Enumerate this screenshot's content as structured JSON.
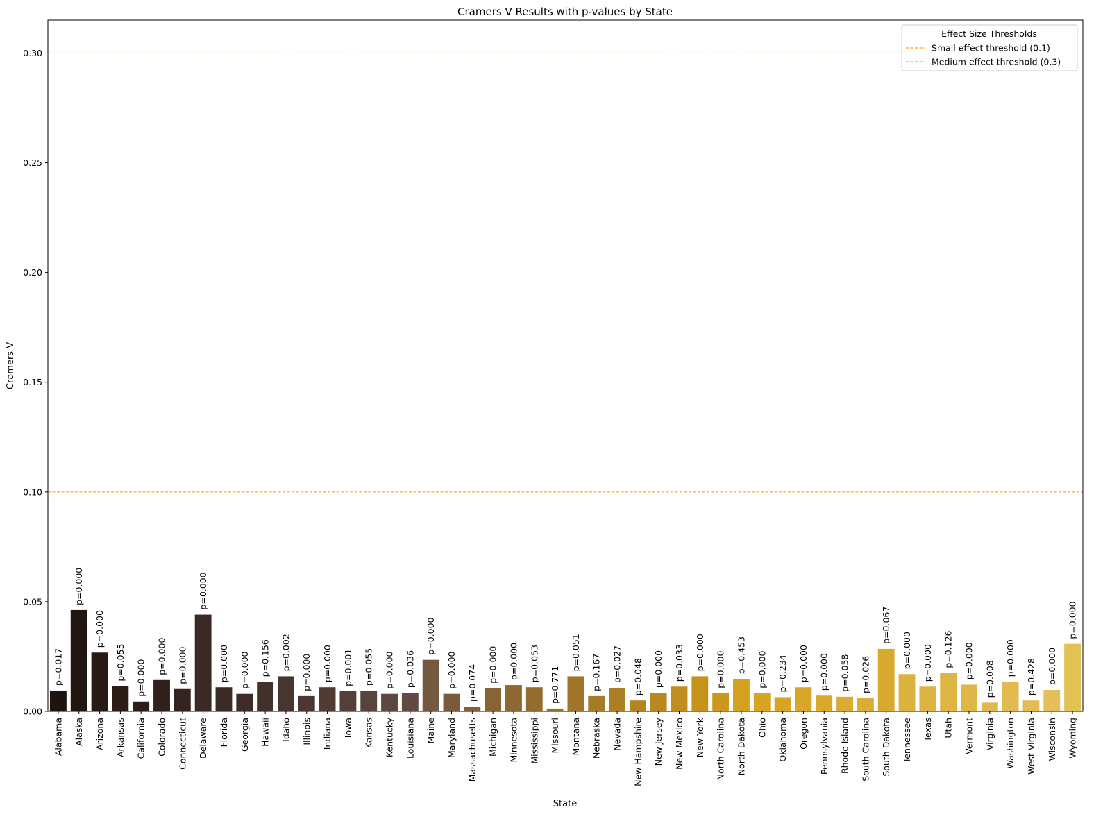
{
  "chart_data": {
    "type": "bar",
    "title": "Cramers V Results with p-values by State",
    "xlabel": "State",
    "ylabel": "Cramers V",
    "ylim": [
      0,
      0.315
    ],
    "yticks": [
      "0.00",
      "0.05",
      "0.10",
      "0.15",
      "0.20",
      "0.25",
      "0.30"
    ],
    "grid": false,
    "categories": [
      "Alabama",
      "Alaska",
      "Arizona",
      "Arkansas",
      "California",
      "Colorado",
      "Connecticut",
      "Delaware",
      "Florida",
      "Georgia",
      "Hawaii",
      "Idaho",
      "Illinois",
      "Indiana",
      "Iowa",
      "Kansas",
      "Kentucky",
      "Louisiana",
      "Maine",
      "Maryland",
      "Massachusetts",
      "Michigan",
      "Minnesota",
      "Mississippi",
      "Missouri",
      "Montana",
      "Nebraska",
      "Nevada",
      "New Hampshire",
      "New Jersey",
      "New Mexico",
      "New York",
      "North Carolina",
      "North Dakota",
      "Ohio",
      "Oklahoma",
      "Oregon",
      "Pennsylvania",
      "Rhode Island",
      "South Carolina",
      "South Dakota",
      "Tennessee",
      "Texas",
      "Utah",
      "Vermont",
      "Virginia",
      "Washington",
      "West Virginia",
      "Wisconsin",
      "Wyoming"
    ],
    "values": [
      0.0095,
      0.0462,
      0.0268,
      0.0115,
      0.0045,
      0.0143,
      0.0102,
      0.0441,
      0.011,
      0.008,
      0.0135,
      0.016,
      0.007,
      0.011,
      0.0092,
      0.0095,
      0.008,
      0.0085,
      0.0235,
      0.008,
      0.0022,
      0.0105,
      0.012,
      0.011,
      0.0013,
      0.016,
      0.007,
      0.0107,
      0.005,
      0.0085,
      0.0113,
      0.016,
      0.0083,
      0.0148,
      0.0083,
      0.0065,
      0.011,
      0.0072,
      0.0067,
      0.006,
      0.0285,
      0.017,
      0.0113,
      0.0175,
      0.0122,
      0.004,
      0.0135,
      0.005,
      0.0098,
      0.0308
    ],
    "p_labels": [
      "p=0.017",
      "p=0.000",
      "p=0.000",
      "p=0.055",
      "p=0.000",
      "p=0.000",
      "p=0.000",
      "p=0.000",
      "p=0.000",
      "p=0.000",
      "p=0.156",
      "p=0.002",
      "p=0.000",
      "p=0.000",
      "p=0.001",
      "p=0.055",
      "p=0.000",
      "p=0.036",
      "p=0.000",
      "p=0.000",
      "p=0.074",
      "p=0.000",
      "p=0.000",
      "p=0.053",
      "p=0.771",
      "p=0.051",
      "p=0.167",
      "p=0.027",
      "p=0.048",
      "p=0.000",
      "p=0.033",
      "p=0.000",
      "p=0.000",
      "p=0.453",
      "p=0.000",
      "p=0.234",
      "p=0.000",
      "p=0.000",
      "p=0.058",
      "p=0.026",
      "p=0.067",
      "p=0.000",
      "p=0.000",
      "p=0.126",
      "p=0.000",
      "p=0.008",
      "p=0.000",
      "p=0.428",
      "p=0.000",
      "p=0.000"
    ],
    "bar_colors": [
      "#1f1310",
      "#221611",
      "#271a15",
      "#2b1c17",
      "#2e1e19",
      "#311f1b",
      "#34231e",
      "#3a2924",
      "#3b2a25",
      "#3f2c28",
      "#42302b",
      "#47352f",
      "#4c3832",
      "#503c35",
      "#553f38",
      "#5a433b",
      "#5e473e",
      "#634a40",
      "#745840",
      "#7a5a3a",
      "#805e38",
      "#876335",
      "#8d6832",
      "#936c30",
      "#9a702d",
      "#a0752a",
      "#a67a27",
      "#ad7f25",
      "#b38422",
      "#b98920",
      "#bf8e1e",
      "#c5931c",
      "#cb981b",
      "#d4a020",
      "#d6a323",
      "#d7a526",
      "#d8a72a",
      "#d9a92e",
      "#daab32",
      "#dbad36",
      "#d8a82f",
      "#dcb13d",
      "#ddb341",
      "#deb545",
      "#dfb749",
      "#e0b94d",
      "#e1bb51",
      "#e2bd55",
      "#e3bf59",
      "#e3c254"
    ],
    "thresholds": [
      {
        "label": "Small effect threshold (0.1)",
        "value": 0.1,
        "color": "#ffa500"
      },
      {
        "label": "Medium effect threshold (0.3)",
        "value": 0.3,
        "color": "#ffa500"
      }
    ],
    "legend": {
      "title": "Effect Size Thresholds",
      "position": "top-right"
    }
  }
}
